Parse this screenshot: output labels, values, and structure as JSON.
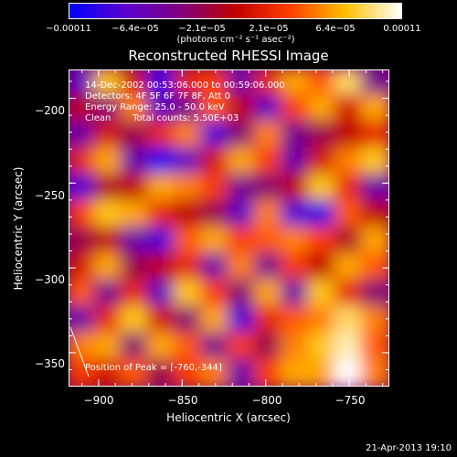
{
  "chart_data": {
    "type": "heatmap",
    "title": "Reconstructed RHESSI Image",
    "xlabel": "Heliocentric X (arcsec)",
    "ylabel": "Heliocentric Y (arcsec)",
    "xlim": [
      -918,
      -726
    ],
    "ylim": [
      -370,
      -183
    ],
    "xticks": [
      -900,
      -850,
      -800,
      -750
    ],
    "xtick_labels": [
      "−900",
      "−850",
      "−800",
      "−750"
    ],
    "yticks": [
      -200,
      -250,
      -300,
      -350
    ],
    "ytick_labels": [
      "−200",
      "−250",
      "−300",
      "−350"
    ],
    "colorbar": {
      "range": [
        -0.00011,
        0.00011
      ],
      "ticks": [
        -0.00011,
        -6.4e-05,
        -2.1e-05,
        2.1e-05,
        6.4e-05,
        0.00011
      ],
      "tick_labels": [
        "−0.00011",
        "−6.4e−05",
        "−2.1e−05",
        "2.1e−05",
        "6.4e−05",
        "0.00011"
      ],
      "units": "(photons cm⁻² s⁻¹ asec⁻²)",
      "colors": [
        "#0000ff",
        "#5a00d0",
        "#800080",
        "#c00000",
        "#ff4000",
        "#ffc000",
        "#ffffff"
      ]
    },
    "annotations": {
      "time_range": "14-Dec-2002 00:53:06.000 to 00:59:06.000",
      "detectors": "Detectors: 4F 5F 6F 7F 8F, Att 0",
      "energy_range": "Energy Range: 25.0 - 50.0 keV",
      "clean_label": "Clean",
      "total_counts": "Total counts: 5.50E+03",
      "peak": "Position of Peak = [-760,-344]"
    },
    "peak_position": [
      -760,
      -344
    ],
    "field_values": [
      [
        -0.6,
        0.7,
        0.1,
        -0.8,
        0.2,
        0.3,
        -0.5,
        0.2,
        0.6,
        0.4,
        0.8,
        -0.4
      ],
      [
        0.0,
        -0.3,
        0.5,
        -0.6,
        -0.4,
        0.4,
        0.0,
        -0.6,
        0.3,
        0.6,
        0.1,
        0.6
      ],
      [
        -0.5,
        0.1,
        -0.2,
        0.2,
        0.5,
        -0.7,
        -0.3,
        0.5,
        -0.4,
        -0.2,
        0.0,
        0.2
      ],
      [
        0.2,
        0.6,
        -0.5,
        -0.9,
        -0.6,
        0.1,
        0.6,
        0.3,
        -0.5,
        0.1,
        0.5,
        0.7
      ],
      [
        -0.7,
        -0.1,
        0.0,
        0.6,
        0.5,
        0.3,
        -0.4,
        -0.3,
        0.0,
        0.7,
        0.2,
        -0.5
      ],
      [
        0.3,
        0.7,
        0.6,
        0.2,
        0.0,
        -0.2,
        -0.6,
        0.5,
        -0.7,
        -0.8,
        0.4,
        0.0
      ],
      [
        -0.2,
        0.0,
        -0.5,
        -0.7,
        0.4,
        0.6,
        0.3,
        0.4,
        0.5,
        0.3,
        -0.1,
        0.6
      ],
      [
        0.1,
        0.6,
        -0.2,
        0.0,
        0.2,
        -0.5,
        0.5,
        -0.4,
        0.3,
        0.0,
        0.6,
        0.4
      ],
      [
        0.4,
        -0.4,
        0.2,
        -0.6,
        0.7,
        0.3,
        -0.3,
        0.6,
        -0.5,
        0.7,
        0.2,
        -0.3
      ],
      [
        -0.5,
        0.2,
        0.7,
        0.1,
        -0.3,
        0.6,
        -0.7,
        0.2,
        0.4,
        0.5,
        0.8,
        0.5
      ],
      [
        0.5,
        0.6,
        -0.3,
        0.6,
        0.4,
        -0.4,
        0.3,
        -0.2,
        0.5,
        0.7,
        0.9,
        0.4
      ],
      [
        0.3,
        0.1,
        0.4,
        -0.2,
        0.3,
        0.5,
        -0.5,
        0.3,
        0.6,
        0.6,
        1.0,
        0.5
      ]
    ]
  },
  "footer": {
    "timestamp": "21-Apr-2013 19:10"
  }
}
